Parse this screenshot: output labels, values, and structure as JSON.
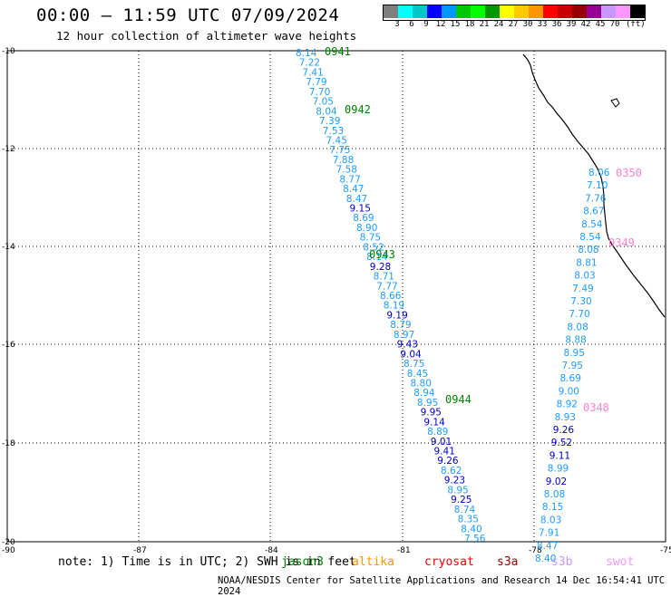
{
  "header": {
    "title": "00:00 – 11:59 UTC 07/09/2024",
    "subtitle": "12 hour collection of altimeter wave heights"
  },
  "scale": {
    "colors": [
      "#7f7f7f",
      "#00ffff",
      "#00c8c8",
      "#0000ff",
      "#0096ff",
      "#00c800",
      "#00ff00",
      "#009600",
      "#ffff00",
      "#ffc800",
      "#ff9600",
      "#ff0000",
      "#c80000",
      "#960000",
      "#960096",
      "#c896ff",
      "#ff96ff",
      "#000000"
    ],
    "labels": [
      "3",
      "6",
      "9",
      "12",
      "15",
      "18",
      "21",
      "24",
      "27",
      "30",
      "33",
      "36",
      "39",
      "42",
      "45",
      "70"
    ],
    "unit": "(ft)"
  },
  "map": {
    "lat_ticks": [
      "-10",
      "-12",
      "-14",
      "-16",
      "-18",
      "-20"
    ],
    "lon_ticks": [
      "-90",
      "-87",
      "-84",
      "-81",
      "-78",
      "-75"
    ]
  },
  "tracks": {
    "track_a": {
      "values": [
        "8.14",
        "7.22",
        "7.41",
        "7.79",
        "7.70",
        "7.05",
        "8.04",
        "7.39",
        "7.53",
        "7.45",
        "7.75",
        "7.88",
        "7.58",
        "8.77",
        "8.47",
        "8.47",
        "9.15",
        "8.69",
        "8.90",
        "8.75",
        "8.52",
        "8.14",
        "9.28",
        "8.71",
        "7.77",
        "8.66",
        "8.19",
        "9.19",
        "8.79",
        "8.97",
        "9.43",
        "9.04",
        "8.75",
        "8.45",
        "8.80",
        "8.94",
        "8.95",
        "9.95",
        "9.14",
        "8.89",
        "9.01",
        "9.41",
        "9.26",
        "8.62",
        "9.23",
        "8.95",
        "9.25",
        "8.74",
        "8.35",
        "8.40",
        "7.56"
      ],
      "colors": [
        "c",
        "c",
        "c",
        "c",
        "c",
        "c",
        "c",
        "c",
        "c",
        "c",
        "c",
        "c",
        "c",
        "c",
        "c",
        "c",
        "b",
        "c",
        "c",
        "c",
        "c",
        "c",
        "b",
        "c",
        "c",
        "c",
        "c",
        "b",
        "c",
        "c",
        "b",
        "b",
        "c",
        "c",
        "c",
        "c",
        "c",
        "b",
        "b",
        "c",
        "b",
        "b",
        "b",
        "c",
        "b",
        "c",
        "b",
        "c",
        "c",
        "c",
        "c"
      ]
    },
    "track_b": {
      "values": [
        "8.06",
        "7.10",
        "7.76",
        "8.67",
        "8.54",
        "8.54",
        "8.08",
        "8.81",
        "8.03",
        "7.49",
        "7.30",
        "7.70",
        "8.08",
        "8.88",
        "8.95",
        "7.95",
        "8.69",
        "9.00",
        "8.92",
        "8.93",
        "9.26",
        "9.52",
        "9.11",
        "8.99",
        "9.02",
        "8.08",
        "8.15",
        "8.03",
        "7.91",
        "8.47",
        "8.40"
      ],
      "colors": [
        "c",
        "c",
        "c",
        "c",
        "c",
        "c",
        "c",
        "c",
        "c",
        "c",
        "c",
        "c",
        "c",
        "c",
        "c",
        "c",
        "c",
        "c",
        "c",
        "c",
        "b",
        "b",
        "b",
        "c",
        "b",
        "c",
        "c",
        "c",
        "c",
        "c",
        "c"
      ]
    },
    "passes": [
      {
        "id": "0941",
        "color": "#008000"
      },
      {
        "id": "0942",
        "color": "#008000"
      },
      {
        "id": "0943",
        "color": "#008000"
      },
      {
        "id": "0944",
        "color": "#008000"
      },
      {
        "id": "0350",
        "color": "#ff80d0"
      },
      {
        "id": "0349",
        "color": "#ff80d0"
      },
      {
        "id": "0348",
        "color": "#ff80d0"
      }
    ]
  },
  "legend": {
    "note": "note: 1) Time is in UTC; 2) SWH is in feet",
    "satellites": [
      {
        "name": "jason3",
        "color": "#008000"
      },
      {
        "name": "altika",
        "color": "#ff9600"
      },
      {
        "name": "cryosat",
        "color": "#ff0000"
      },
      {
        "name": "s3a",
        "color": "#960000"
      },
      {
        "name": "s3b",
        "color": "#c896ff"
      },
      {
        "name": "swot",
        "color": "#ff96ff"
      }
    ]
  },
  "footer": "NOAA/NESDIS Center for Satellite Applications and Research   14 Dec 16:54:41 UTC 2024"
}
